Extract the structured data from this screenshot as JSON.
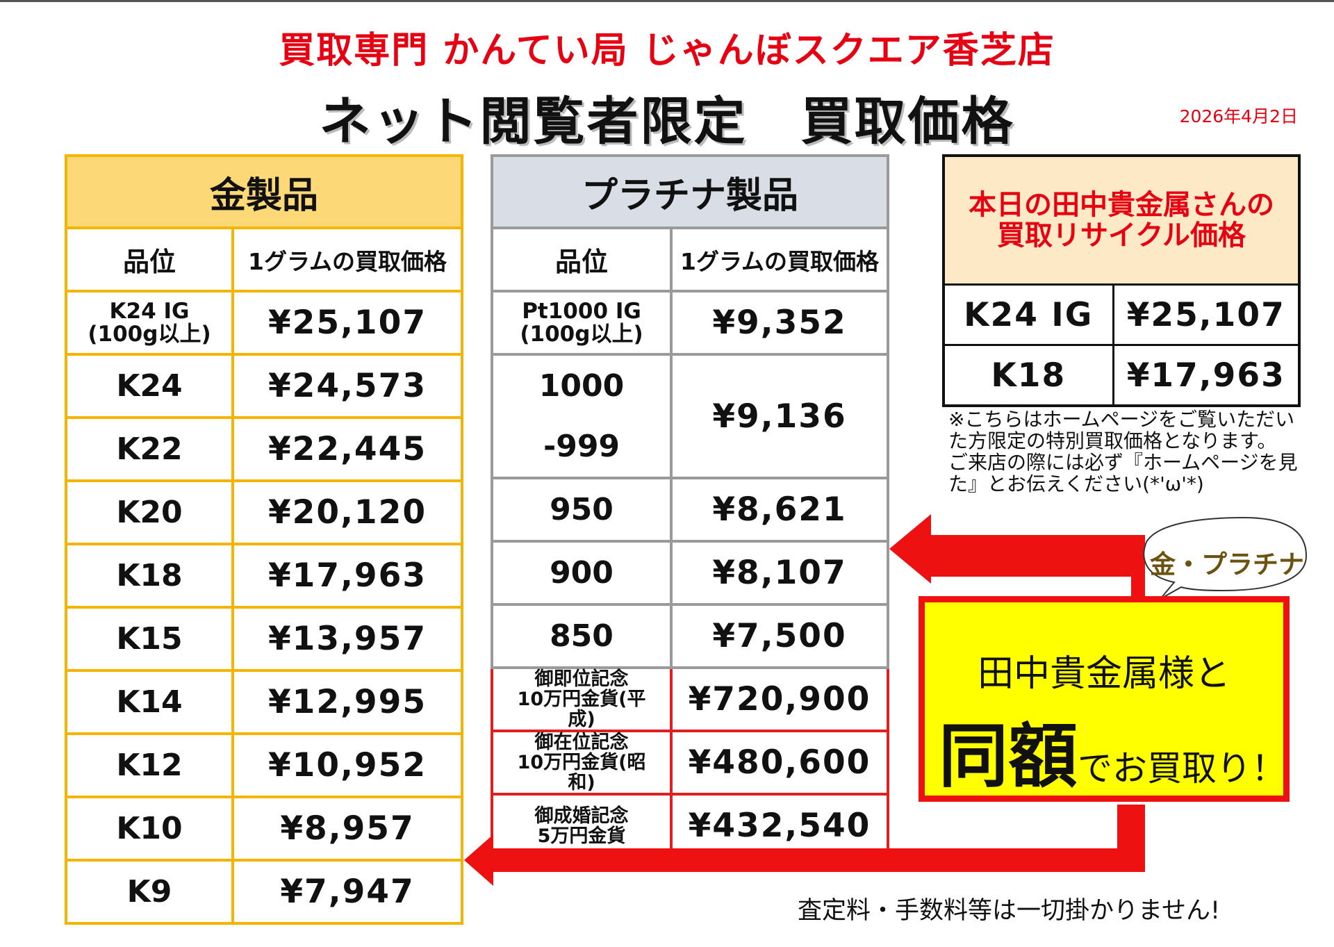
{
  "header": {
    "store_name": "買取専門 かんてい局 じゃんぼスクエア香芝店",
    "headline": "ネット閲覧者限定　買取価格",
    "date": "2026年4月2日"
  },
  "gold_table": {
    "title": "金製品",
    "col_grade": "品位",
    "col_price": "1グラムの買取価格",
    "rows": [
      {
        "grade_line1": "K24 IG",
        "grade_line2": "(100g以上)",
        "price": "¥25,107"
      },
      {
        "grade": "K24",
        "price": "¥24,573"
      },
      {
        "grade": "K22",
        "price": "¥22,445"
      },
      {
        "grade": "K20",
        "price": "¥20,120"
      },
      {
        "grade": "K18",
        "price": "¥17,963"
      },
      {
        "grade": "K15",
        "price": "¥13,957"
      },
      {
        "grade": "K14",
        "price": "¥12,995"
      },
      {
        "grade": "K12",
        "price": "¥10,952"
      },
      {
        "grade": "K10",
        "price": "¥8,957"
      },
      {
        "grade": "K9",
        "price": "¥7,947"
      }
    ]
  },
  "platinum_table": {
    "title": "プラチナ製品",
    "col_grade": "品位",
    "col_price": "1グラムの買取価格",
    "rows": [
      {
        "grade_line1": "Pt1000 IG",
        "grade_line2": "(100g以上)",
        "price": "¥9,352"
      },
      {
        "grade_a": "1000",
        "grade_b": "-999",
        "price": "¥9,136"
      },
      {
        "grade": "950",
        "price": "¥8,621"
      },
      {
        "grade": "900",
        "price": "¥8,107"
      },
      {
        "grade": "850",
        "price": "¥7,500"
      }
    ],
    "coins": [
      {
        "line1": "御即位記念",
        "line2": "10万円金貨(平",
        "line3": "成)",
        "price": "¥720,900"
      },
      {
        "line1": "御在位記念",
        "line2": "10万円金貨(昭",
        "line3": "和)",
        "price": "¥480,600"
      },
      {
        "line1": "御成婚記念",
        "line2": "5万円金貨",
        "price": "¥432,540"
      }
    ]
  },
  "tanaka_box": {
    "title_line1": "本日の田中貴金属さんの",
    "title_line2": "買取リサイクル価格",
    "rows": [
      {
        "grade": "K24 IG",
        "price": "¥25,107"
      },
      {
        "grade": "K18",
        "price": "¥17,963"
      }
    ]
  },
  "note": {
    "line1": "※こちらはホームページをご覧いただいた方限定の特別買取価格となります。",
    "line2": "ご来店の際には必ず『ホームページを見た』とお伝えください(*'ω'*)"
  },
  "bubble": {
    "text": "金・プラチナ"
  },
  "promo": {
    "line1": "田中貴金属様と",
    "big_word": "同額",
    "rest": "でお買取り！"
  },
  "footer": {
    "text": "査定料・手数料等は一切掛かりません!"
  },
  "colors": {
    "red": "#e60012",
    "gold_border": "#f4b400",
    "gold_header": "#fcd976",
    "platinum_border": "#9a9a9a",
    "platinum_header": "#d9dee6",
    "promo_yellow": "#ffff00",
    "tanaka_header": "#fde9c6"
  }
}
